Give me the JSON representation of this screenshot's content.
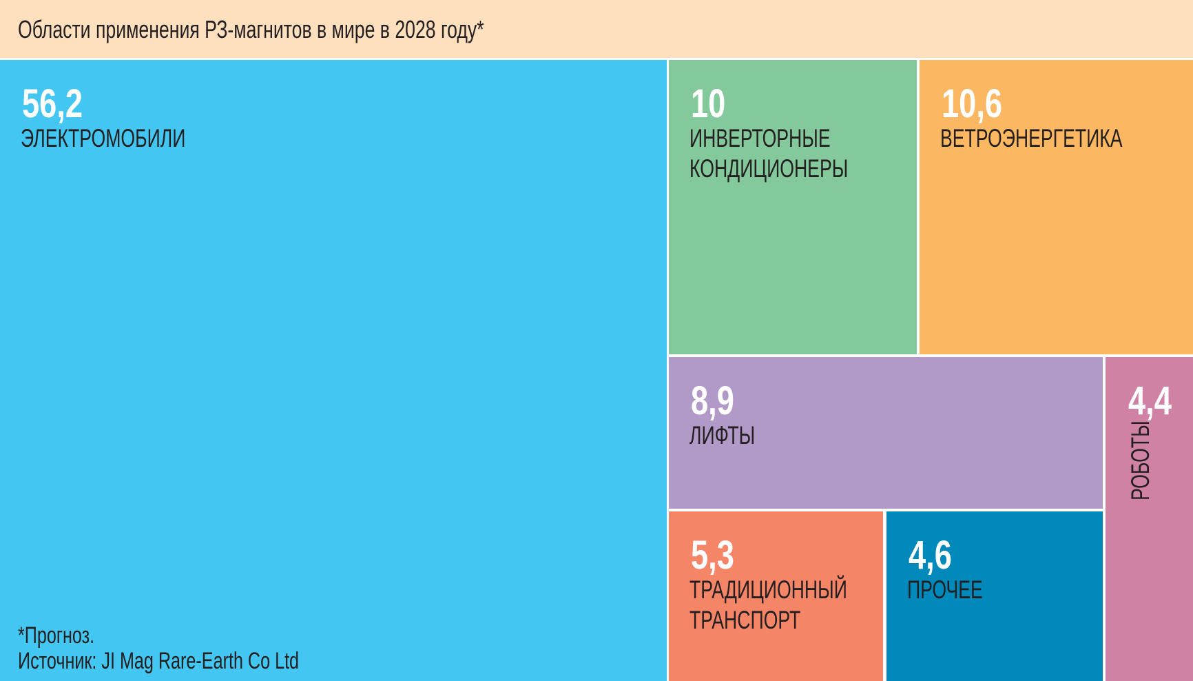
{
  "chart_data": {
    "type": "treemap",
    "title": "Области применения РЗ-магнитов в мире в 2028 году*",
    "items": [
      {
        "label": "ЭЛЕКТРОМОБИЛИ",
        "value": 56.2,
        "value_text": "56,2",
        "color": "#43c6f1"
      },
      {
        "label": "ИНВЕРТОРНЫЕ КОНДИЦИОНЕРЫ",
        "label_lines": [
          "ИНВЕРТОРНЫЕ",
          "КОНДИЦИОНЕРЫ"
        ],
        "value": 10,
        "value_text": "10",
        "color": "#83c99c"
      },
      {
        "label": "ВЕТРОЭНЕРГЕТИКА",
        "value": 10.6,
        "value_text": "10,6",
        "color": "#fcb762"
      },
      {
        "label": "ЛИФТЫ",
        "value": 8.9,
        "value_text": "8,9",
        "color": "#b29ac8"
      },
      {
        "label": "РОБОТЫ",
        "value": 4.4,
        "value_text": "4,4",
        "color": "#d082a5"
      },
      {
        "label": "ТРАДИЦИОННЫЙ ТРАНСПОРТ",
        "label_lines": [
          "ТРАДИЦИОННЫЙ",
          "ТРАНСПОРТ"
        ],
        "value": 5.3,
        "value_text": "5,3",
        "color": "#f58567"
      },
      {
        "label": "ПРОЧЕЕ",
        "value": 4.6,
        "value_text": "4,6",
        "color": "#0089ba"
      }
    ],
    "footnote": "*Прогноз.",
    "source": "Источник: JI Mag Rare-Earth Co Ltd"
  },
  "header_color": "#fee0bf"
}
